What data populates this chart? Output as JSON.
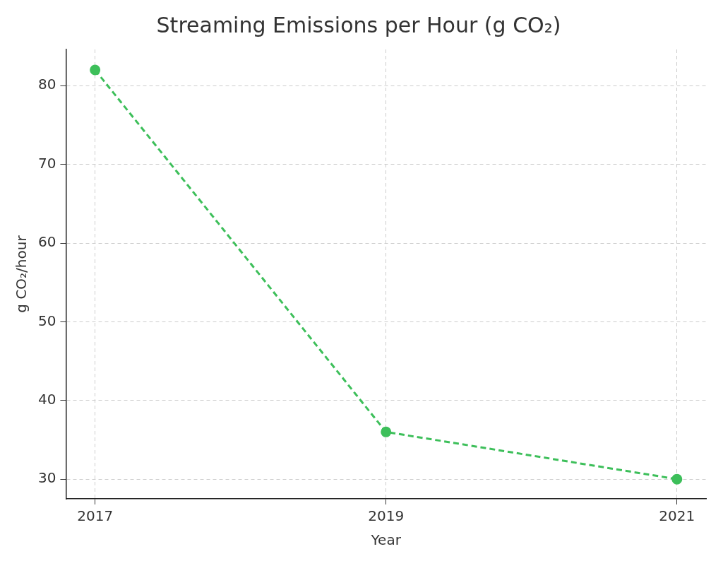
{
  "chart_data": {
    "type": "line",
    "title": "Streaming Emissions per Hour (g CO₂)",
    "xlabel": "Year",
    "ylabel": "g CO₂/hour",
    "x": [
      2017,
      2019,
      2021
    ],
    "series": [
      {
        "color": "#3dbf5a",
        "values": [
          82,
          36,
          30
        ]
      }
    ],
    "xlim": [
      2016.8,
      2021.2
    ],
    "xticks": [
      2017,
      2019,
      2021
    ],
    "ylim": [
      27.5,
      84.6
    ],
    "yticks": [
      30,
      40,
      50,
      60,
      70,
      80
    ],
    "grid": true,
    "legend": false,
    "marker": "circle",
    "line_style": "dashed"
  }
}
